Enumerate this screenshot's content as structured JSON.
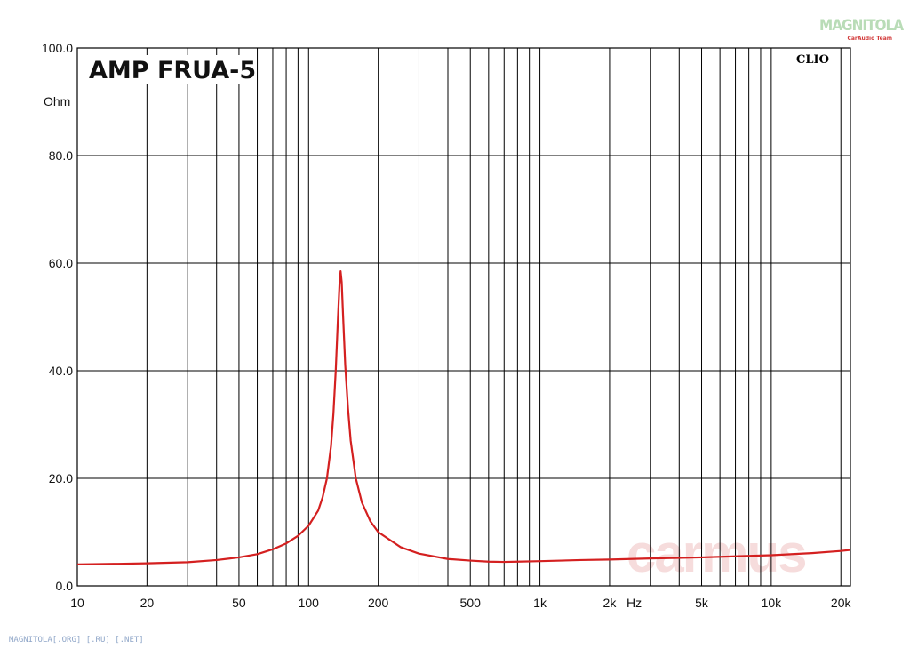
{
  "logo": {
    "text": "MAGNITOLA",
    "subtitle": "CarAudio Team"
  },
  "footer": {
    "text": "MAGNITOLA[.ORG] [.RU] [.NET]"
  },
  "watermark": {
    "text": "carmus"
  },
  "chart_data": {
    "type": "line",
    "title": "AMP FRUA-5",
    "brand": "CLIO",
    "y_unit": "Ohm",
    "x_unit": "Hz",
    "x_scale": "log",
    "xlim": [
      10,
      22000
    ],
    "ylim": [
      0,
      100
    ],
    "grid": true,
    "x_ticks": [
      {
        "value": 10,
        "label": "10"
      },
      {
        "value": 20,
        "label": "20"
      },
      {
        "value": 50,
        "label": "50"
      },
      {
        "value": 100,
        "label": "100"
      },
      {
        "value": 200,
        "label": "200"
      },
      {
        "value": 500,
        "label": "500"
      },
      {
        "value": 1000,
        "label": "1k"
      },
      {
        "value": 2000,
        "label": "2k"
      },
      {
        "value": 5000,
        "label": "5k"
      },
      {
        "value": 10000,
        "label": "10k"
      },
      {
        "value": 20000,
        "label": "20k"
      }
    ],
    "y_ticks": [
      {
        "value": 0,
        "label": "0.0"
      },
      {
        "value": 20,
        "label": "20.0"
      },
      {
        "value": 40,
        "label": "40.0"
      },
      {
        "value": 60,
        "label": "60.0"
      },
      {
        "value": 80,
        "label": "80.0"
      },
      {
        "value": 100,
        "label": "100.0"
      }
    ],
    "series": [
      {
        "color": "#d42020",
        "points": [
          [
            10,
            4.0
          ],
          [
            15,
            4.1
          ],
          [
            20,
            4.2
          ],
          [
            30,
            4.4
          ],
          [
            40,
            4.8
          ],
          [
            50,
            5.3
          ],
          [
            60,
            5.9
          ],
          [
            70,
            6.8
          ],
          [
            80,
            7.9
          ],
          [
            90,
            9.3
          ],
          [
            100,
            11.2
          ],
          [
            110,
            14.0
          ],
          [
            115,
            16.5
          ],
          [
            120,
            20.0
          ],
          [
            125,
            26.0
          ],
          [
            128,
            32.0
          ],
          [
            131,
            40.0
          ],
          [
            134,
            50.0
          ],
          [
            136,
            56.0
          ],
          [
            137.5,
            58.5
          ],
          [
            139,
            56.5
          ],
          [
            141,
            50.0
          ],
          [
            144,
            41.0
          ],
          [
            148,
            33.0
          ],
          [
            152,
            27.0
          ],
          [
            160,
            20.0
          ],
          [
            170,
            15.5
          ],
          [
            185,
            12.0
          ],
          [
            200,
            10.0
          ],
          [
            250,
            7.2
          ],
          [
            300,
            6.0
          ],
          [
            400,
            5.0
          ],
          [
            500,
            4.7
          ],
          [
            600,
            4.5
          ],
          [
            700,
            4.45
          ],
          [
            800,
            4.5
          ],
          [
            1000,
            4.6
          ],
          [
            1500,
            4.8
          ],
          [
            2000,
            4.9
          ],
          [
            3000,
            5.1
          ],
          [
            5000,
            5.3
          ],
          [
            7000,
            5.5
          ],
          [
            10000,
            5.7
          ],
          [
            15000,
            6.1
          ],
          [
            20000,
            6.5
          ],
          [
            22000,
            6.7
          ]
        ]
      }
    ]
  }
}
